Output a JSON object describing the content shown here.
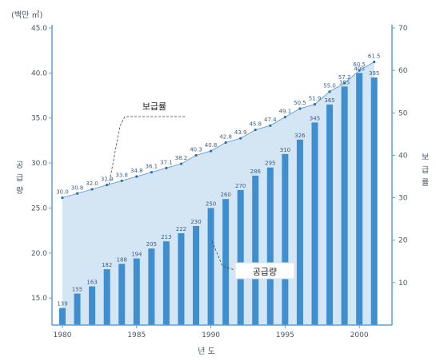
{
  "chart_data": {
    "type": "bar",
    "units_label": "(백만 ㎥)",
    "xlabel": "년 도",
    "ylabel_left": [
      "공",
      "급",
      "량"
    ],
    "ylabel_right": [
      "보",
      "급",
      "률"
    ],
    "y_left_ticks": [
      "45.0",
      "40.0",
      "35.0",
      "30.0",
      "25.0",
      "20.0",
      "15.0"
    ],
    "y_right_ticks": [
      "70",
      "60",
      "50",
      "40",
      "30",
      "20",
      "10"
    ],
    "x_ticks": [
      "1980",
      "1985",
      "1990",
      "1995",
      "2000"
    ],
    "ylim_left": [
      12,
      45
    ],
    "ylim_right": [
      0,
      70
    ],
    "x": [
      1980,
      1981,
      1982,
      1983,
      1984,
      1985,
      1986,
      1987,
      1988,
      1989,
      1990,
      1991,
      1992,
      1993,
      1994,
      1995,
      1996,
      1997,
      1998,
      1999,
      2000,
      2001
    ],
    "bar_series": {
      "name": "공급량",
      "values": [
        13.9,
        15.5,
        16.3,
        18.2,
        18.8,
        19.4,
        20.5,
        21.3,
        22.2,
        23.0,
        25.0,
        26.0,
        27.0,
        28.6,
        29.5,
        31.0,
        32.6,
        34.5,
        36.5,
        38.5,
        40.0,
        39.5
      ],
      "labels": [
        "139",
        "155",
        "163",
        "182",
        "188",
        "194",
        "205",
        "213",
        "222",
        "230",
        "250",
        "260",
        "270",
        "286",
        "295",
        "310",
        "326",
        "345",
        "365",
        "385",
        "400",
        "395"
      ]
    },
    "line_series": {
      "name": "보급률",
      "values": [
        30,
        31,
        32,
        33,
        34,
        35,
        36,
        37,
        38,
        40,
        41,
        43,
        44,
        46,
        47,
        49,
        51,
        52,
        55,
        57,
        60,
        62
      ],
      "labels": [
        "30.0",
        "30.8",
        "32.0",
        "32.9",
        "33.8",
        "34.8",
        "36.1",
        "37.1",
        "38.2",
        "40.3",
        "40.8",
        "42.8",
        "43.9",
        "45.8",
        "47.4",
        "49.1",
        "50.5",
        "51.9",
        "55.0",
        "57.2",
        "60.5",
        "61.5"
      ]
    },
    "annotations": [
      "보급률",
      "공급량"
    ],
    "colors": {
      "bar": "#3f8fd0",
      "area": "#cfe3f3",
      "axis": "#5aa0d8"
    }
  }
}
